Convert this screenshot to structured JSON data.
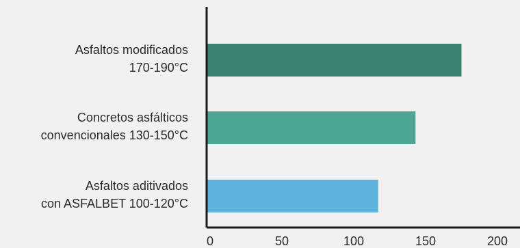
{
  "chart_data": {
    "type": "bar",
    "orientation": "horizontal",
    "categories": [
      [
        "Asfaltos modificados",
        "170-190°C"
      ],
      [
        "Concretos asfálticos",
        "convencionales 130-150°C"
      ],
      [
        "Asfaltos aditivados",
        "con ASFALBET 100-120°C"
      ]
    ],
    "values": [
      175,
      143,
      117
    ],
    "colors": [
      "#3c8272",
      "#4ba793",
      "#5fb1de"
    ],
    "xlim": [
      0,
      200
    ],
    "xticks": [
      0,
      50,
      100,
      150,
      200
    ],
    "title": "",
    "xlabel": "",
    "ylabel": "",
    "grid": false,
    "legend": "none"
  }
}
